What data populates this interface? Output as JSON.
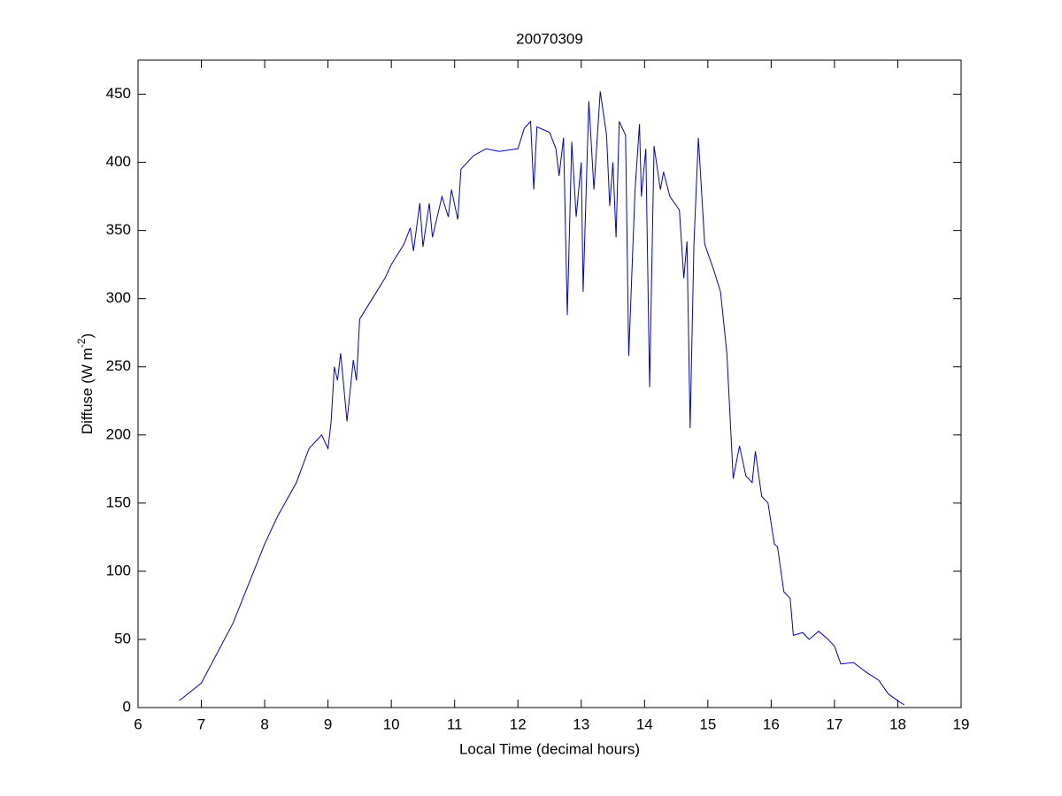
{
  "chart_data": {
    "type": "line",
    "title": "20070309",
    "xlabel": "Local Time (decimal hours)",
    "ylabel_parts": [
      "Diffuse (W m",
      "-2",
      ")"
    ],
    "xlim": [
      6,
      19
    ],
    "xticks": [
      6,
      7,
      8,
      9,
      10,
      11,
      12,
      13,
      14,
      15,
      16,
      17,
      18,
      19
    ],
    "ylim": [
      0,
      475
    ],
    "yticks": [
      0,
      50,
      100,
      150,
      200,
      250,
      300,
      350,
      400,
      450
    ],
    "series": [
      {
        "name": "Diffuse",
        "color": "#0000cc",
        "x": [
          6.65,
          7.0,
          7.5,
          8.0,
          8.2,
          8.5,
          8.7,
          8.9,
          9.0,
          9.05,
          9.1,
          9.15,
          9.2,
          9.3,
          9.4,
          9.45,
          9.5,
          9.7,
          9.9,
          10.0,
          10.2,
          10.3,
          10.35,
          10.45,
          10.5,
          10.6,
          10.65,
          10.8,
          10.9,
          10.95,
          11.05,
          11.1,
          11.3,
          11.5,
          11.7,
          12.0,
          12.1,
          12.2,
          12.25,
          12.3,
          12.5,
          12.6,
          12.65,
          12.72,
          12.78,
          12.85,
          12.92,
          13.0,
          13.03,
          13.12,
          13.2,
          13.3,
          13.4,
          13.45,
          13.5,
          13.55,
          13.6,
          13.7,
          13.75,
          13.85,
          13.92,
          13.95,
          14.02,
          14.08,
          14.15,
          14.25,
          14.3,
          14.4,
          14.55,
          14.62,
          14.67,
          14.72,
          14.78,
          14.85,
          14.95,
          15.1,
          15.2,
          15.3,
          15.4,
          15.5,
          15.6,
          15.7,
          15.75,
          15.85,
          15.95,
          16.05,
          16.1,
          16.2,
          16.3,
          16.35,
          16.5,
          16.6,
          16.75,
          16.9,
          17.0,
          17.1,
          17.3,
          17.5,
          17.7,
          17.85,
          18.0,
          18.1
        ],
        "values": [
          5,
          18,
          62,
          120,
          140,
          165,
          190,
          200,
          190,
          210,
          250,
          240,
          260,
          210,
          255,
          240,
          285,
          300,
          315,
          325,
          340,
          352,
          335,
          370,
          338,
          370,
          345,
          375,
          360,
          380,
          358,
          395,
          405,
          410,
          408,
          410,
          425,
          430,
          380,
          426,
          422,
          410,
          390,
          418,
          288,
          415,
          360,
          400,
          305,
          445,
          380,
          452,
          420,
          368,
          400,
          345,
          430,
          420,
          258,
          380,
          428,
          375,
          410,
          235,
          412,
          380,
          393,
          375,
          365,
          315,
          342,
          205,
          340,
          418,
          340,
          320,
          305,
          260,
          168,
          192,
          170,
          165,
          188,
          155,
          150,
          120,
          118,
          85,
          80,
          53,
          55,
          50,
          56,
          50,
          45,
          32,
          33,
          26,
          20,
          10,
          5,
          2
        ]
      }
    ]
  }
}
